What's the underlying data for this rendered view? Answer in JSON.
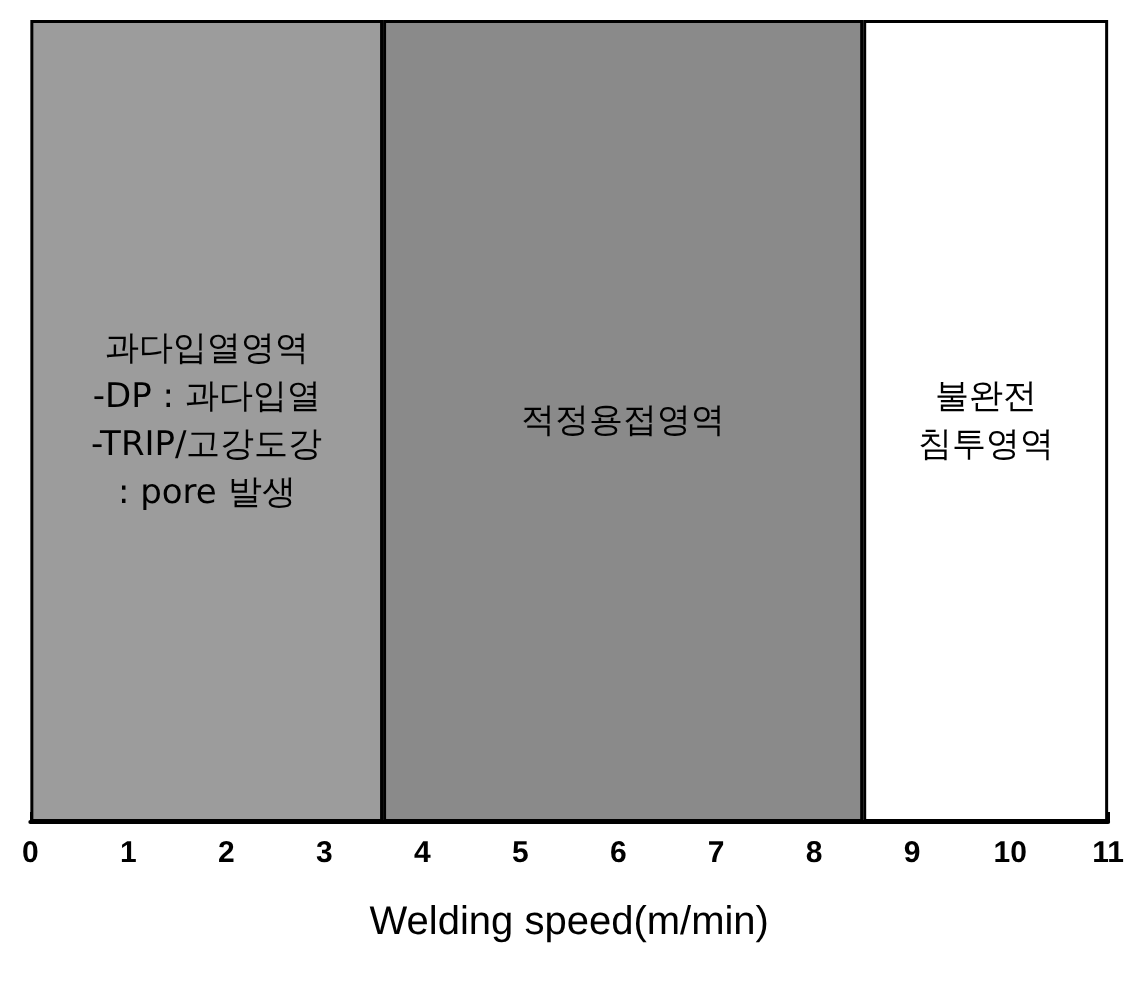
{
  "chart_data": {
    "type": "bar",
    "orientation": "horizontal",
    "stacked": true,
    "xlabel": "Welding speed(m/min)",
    "xlim": [
      0,
      11
    ],
    "xticks": [
      0,
      1,
      2,
      3,
      4,
      5,
      6,
      7,
      8,
      9,
      10,
      11
    ],
    "tick_labels": "x",
    "categories": [
      null
    ],
    "series": [
      {
        "name": "과다입열영역\n-DP : 과다입열\n-TRIP/고강도강\n: pore 발생",
        "color": "#9c9c9c",
        "values": [
          3.6
        ]
      },
      {
        "name": "적정용접영역",
        "color": "#8a8a8a",
        "values": [
          4.9
        ]
      },
      {
        "name": "불완전\n침투영역",
        "color": "#ffffff",
        "values": [
          2.5
        ]
      }
    ]
  }
}
